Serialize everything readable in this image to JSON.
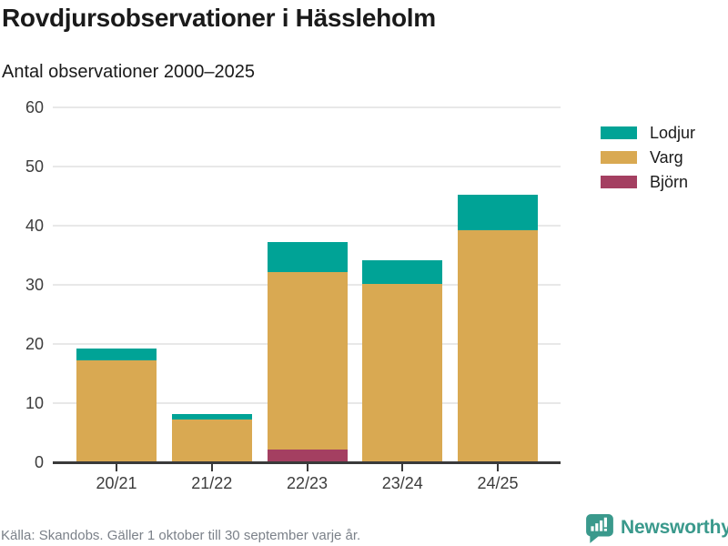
{
  "header": {
    "title": "Rovdjursobservationer i Hässleholm",
    "subtitle": "Antal observationer 2000–2025"
  },
  "chart_data": {
    "type": "bar",
    "stacked": true,
    "title": "Rovdjursobservationer i Hässleholm",
    "subtitle": "Antal observationer 2000–2025",
    "categories": [
      "20/21",
      "21/22",
      "22/23",
      "23/24",
      "24/25"
    ],
    "series": [
      {
        "name": "Lodjur",
        "color": "#00a396",
        "values": [
          2,
          1,
          5,
          4,
          6
        ]
      },
      {
        "name": "Varg",
        "color": "#d9a952",
        "values": [
          17,
          7,
          30,
          30,
          39
        ]
      },
      {
        "name": "Björn",
        "color": "#a43f61",
        "values": [
          0,
          0,
          2,
          0,
          0
        ]
      }
    ],
    "stack_order_bottom_to_top": [
      "Björn",
      "Varg",
      "Lodjur"
    ],
    "stack_totals": [
      19,
      8,
      37,
      34,
      45
    ],
    "xlabel": "",
    "ylabel": "",
    "ylim": [
      0,
      60
    ],
    "yticks": [
      0,
      10,
      20,
      30,
      40,
      50,
      60
    ],
    "grid": "horizontal",
    "legend_position": "right"
  },
  "footer": {
    "source": "Källa: Skandobs. Gäller 1 oktober till 30 september varje år.",
    "brand": "Newsworthy"
  },
  "colors": {
    "lodjur_teal": "#00a396",
    "varg_gold": "#d9a952",
    "bjorn_maroon": "#a43f61",
    "brand_teal": "#3a998c",
    "gridline": "#e8e8e8",
    "axis": "#3a3a3a",
    "text_dark": "#1a1a1a",
    "text_muted": "#7b8189"
  }
}
